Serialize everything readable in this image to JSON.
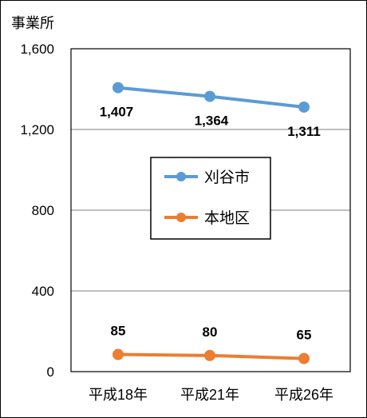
{
  "chart_data": {
    "type": "line",
    "title": "",
    "ylabel": "事業所",
    "xlabel": "",
    "categories": [
      "平成18年",
      "平成21年",
      "平成26年"
    ],
    "ylim": [
      0,
      1600
    ],
    "yticks": [
      0,
      400,
      800,
      1200,
      1600
    ],
    "ytick_labels": [
      "0",
      "400",
      "800",
      "1,200",
      "1,600"
    ],
    "grid": true,
    "legend_position": "center",
    "series": [
      {
        "name": "刈谷市",
        "values": [
          1407,
          1364,
          1311
        ],
        "labels": [
          "1,407",
          "1,364",
          "1,311"
        ],
        "color": "#5B9BD5"
      },
      {
        "name": "本地区",
        "values": [
          85,
          80,
          65
        ],
        "labels": [
          "85",
          "80",
          "65"
        ],
        "color": "#ED7D31"
      }
    ]
  }
}
